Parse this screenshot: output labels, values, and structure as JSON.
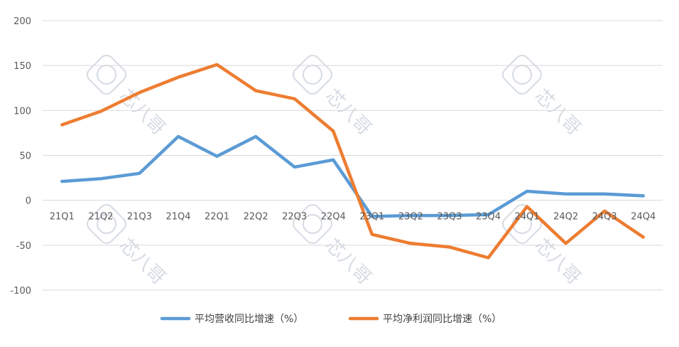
{
  "chart_data": {
    "type": "line",
    "categories": [
      "21Q1",
      "21Q2",
      "21Q3",
      "21Q4",
      "22Q1",
      "22Q2",
      "22Q3",
      "22Q4",
      "23Q1",
      "23Q2",
      "23Q3",
      "23Q4",
      "24Q1",
      "24Q2",
      "24Q3",
      "24Q4"
    ],
    "series": [
      {
        "name": "平均营收同比增速（%）",
        "color": "#5B9BD5",
        "values": [
          21,
          24,
          30,
          71,
          49,
          71,
          37,
          45,
          -18,
          -17,
          -17,
          -16,
          10,
          7,
          7,
          5
        ]
      },
      {
        "name": "平均净利润同比增速（%）",
        "color": "#ED7D31",
        "values": [
          84,
          99,
          120,
          137,
          151,
          122,
          113,
          77,
          -38,
          -48,
          -52,
          -64,
          -7,
          -48,
          -12,
          -41
        ]
      }
    ],
    "y_ticks": [
      "200",
      "150",
      "100",
      "50",
      "0",
      "-50",
      "-100"
    ],
    "ylim": [
      -100,
      200
    ],
    "grid": true,
    "legend_position": "bottom",
    "watermark": "芯八哥"
  }
}
